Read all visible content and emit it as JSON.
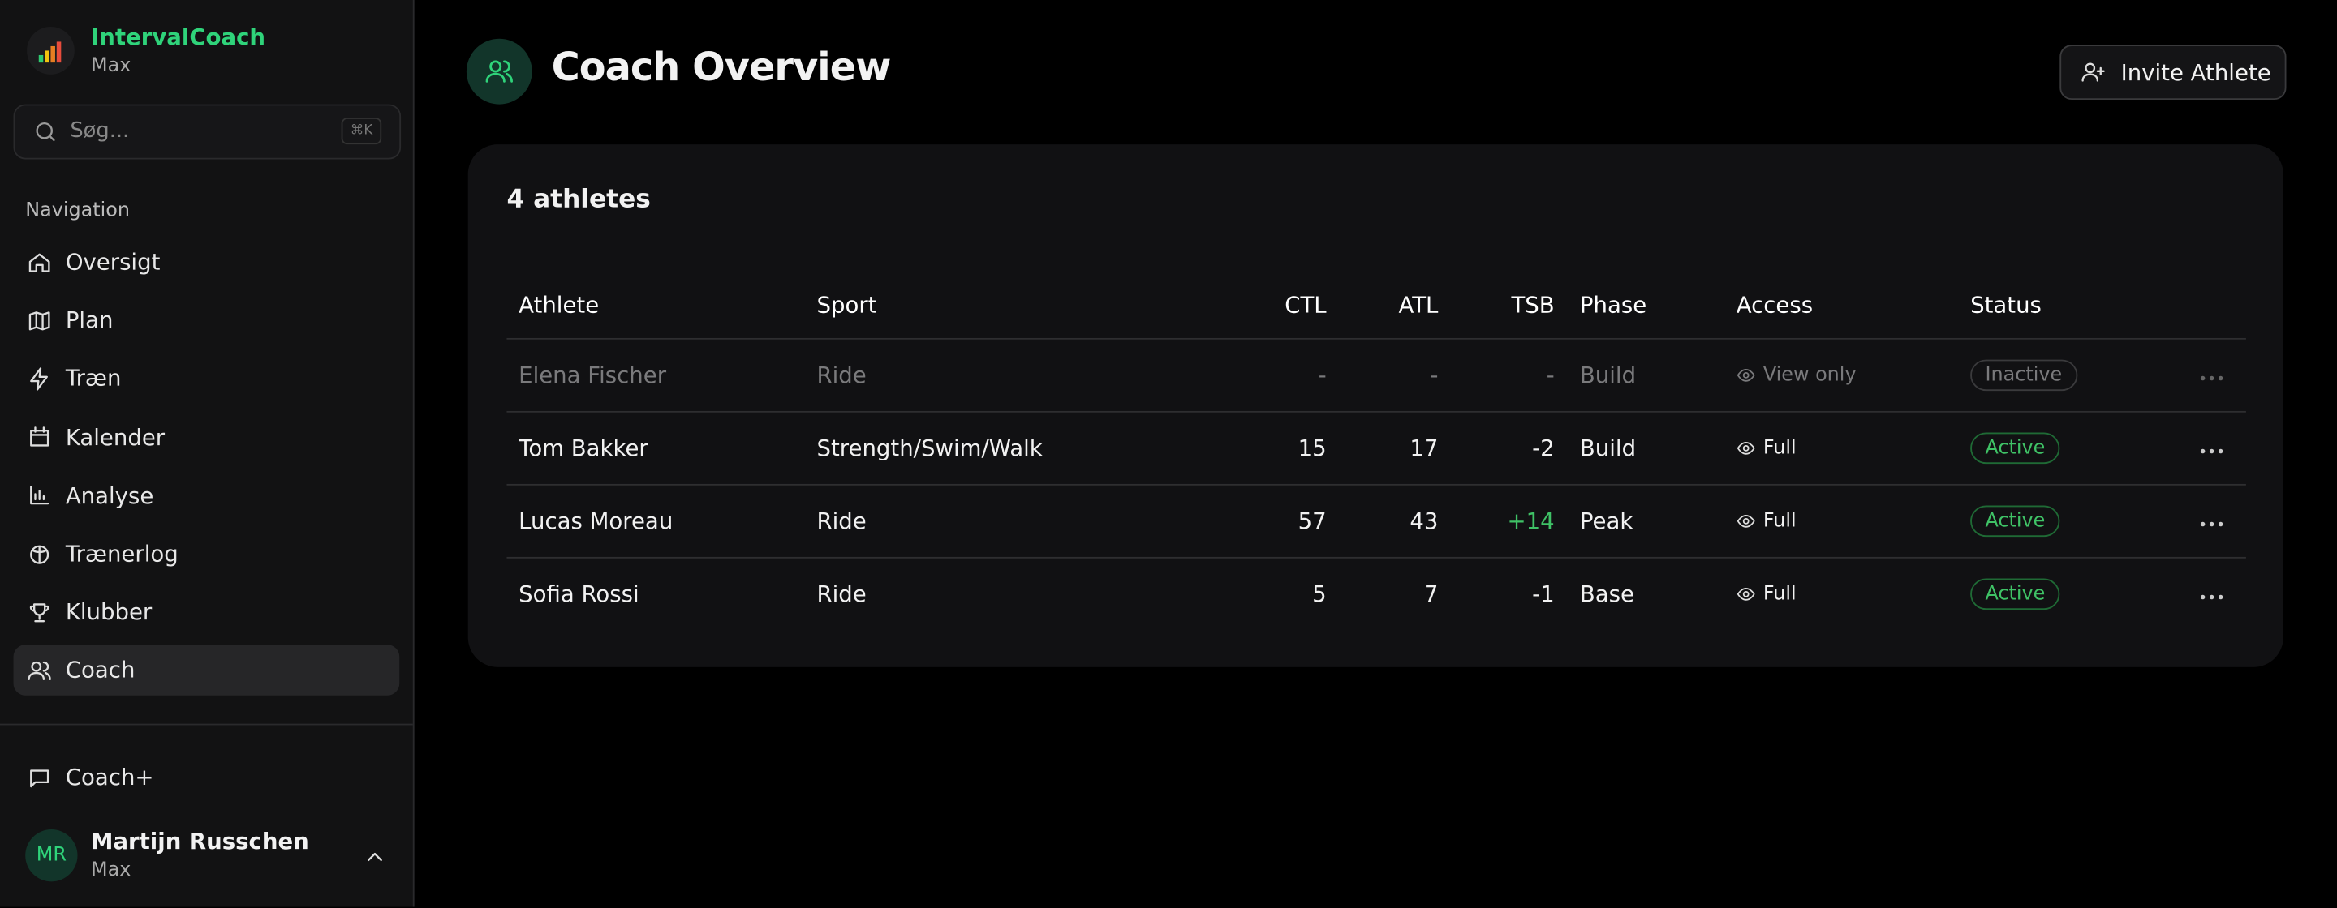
{
  "sidebar": {
    "app_name": "IntervalCoach",
    "plan": "Max",
    "search_placeholder": "Søg...",
    "search_shortcut": "⌘K",
    "nav_heading": "Navigation",
    "nav_items": [
      "Oversigt",
      "Plan",
      "Træn",
      "Kalender",
      "Analyse",
      "Trænerlog",
      "Klubber",
      "Coach"
    ],
    "extra_item": "Coach+",
    "user": {
      "initials": "MR",
      "name": "Martijn Russchen",
      "plan": "Max"
    }
  },
  "header": {
    "title": "Coach Overview",
    "button": "Invite Athlete"
  },
  "card": {
    "count": "4 athletes"
  },
  "table": {
    "columns": [
      "Athlete",
      "Sport",
      "CTL",
      "ATL",
      "TSB",
      "Phase",
      "Access",
      "Status"
    ],
    "rows": [
      [
        "Elena Fischer",
        "Ride",
        "-",
        "-",
        "-",
        "Build",
        "View only",
        "Inactive"
      ],
      [
        "Tom Bakker",
        "Strength/Swim/Walk",
        "15",
        "17",
        "-2",
        "Build",
        "Full",
        "Active"
      ],
      [
        "Lucas Moreau",
        "Ride",
        "57",
        "43",
        "+14",
        "Peak",
        "Full",
        "Active"
      ],
      [
        "Sofia Rossi",
        "Ride",
        "5",
        "7",
        "-1",
        "Base",
        "Full",
        "Active"
      ]
    ]
  }
}
